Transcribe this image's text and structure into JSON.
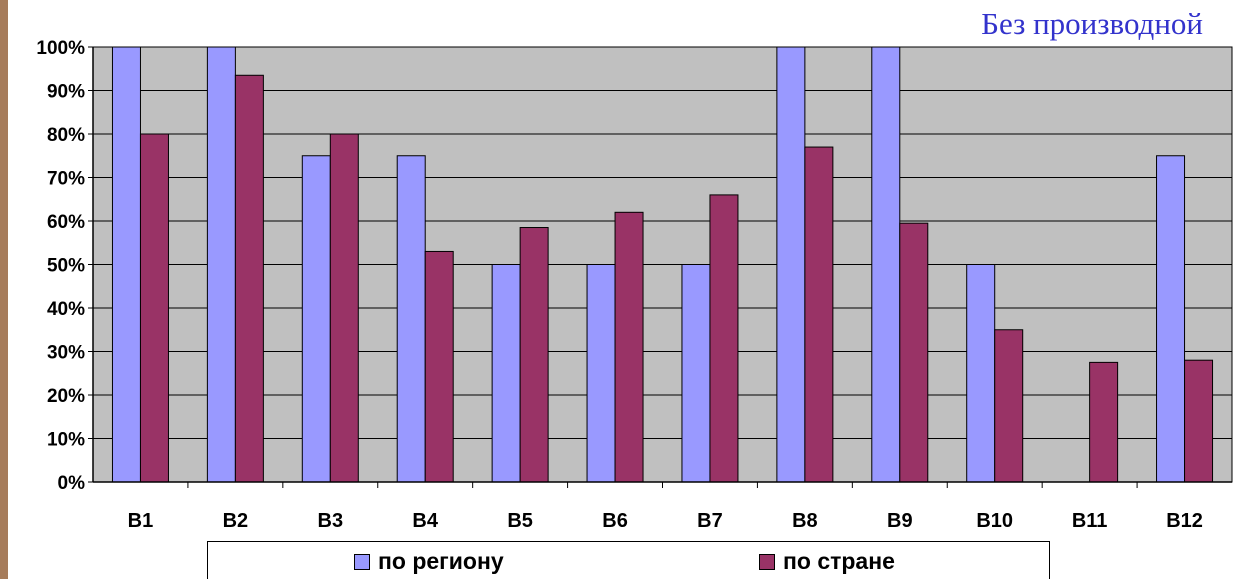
{
  "chart_data": {
    "type": "bar",
    "title": "Без производной",
    "categories": [
      "B1",
      "B2",
      "B3",
      "B4",
      "B5",
      "B6",
      "B7",
      "B8",
      "B9",
      "B10",
      "B11",
      "B12"
    ],
    "series": [
      {
        "name": "по региону",
        "color": "#9999ff",
        "values": [
          100,
          100,
          75,
          75,
          50,
          50,
          50,
          100,
          100,
          50,
          0,
          75
        ]
      },
      {
        "name": "по стране",
        "color": "#993366",
        "values": [
          80,
          93.5,
          80,
          53,
          58.5,
          62,
          66,
          77,
          59.5,
          35,
          27.5,
          28
        ]
      }
    ],
    "ylim": [
      0,
      100
    ],
    "yticks": [
      0,
      10,
      20,
      30,
      40,
      50,
      60,
      70,
      80,
      90,
      100
    ],
    "ytick_labels": [
      "0%",
      "10%",
      "20%",
      "30%",
      "40%",
      "50%",
      "60%",
      "70%",
      "80%",
      "90%",
      "100%"
    ],
    "grid": true,
    "plot_background": "#c0c0c0",
    "legend_position": "bottom"
  }
}
